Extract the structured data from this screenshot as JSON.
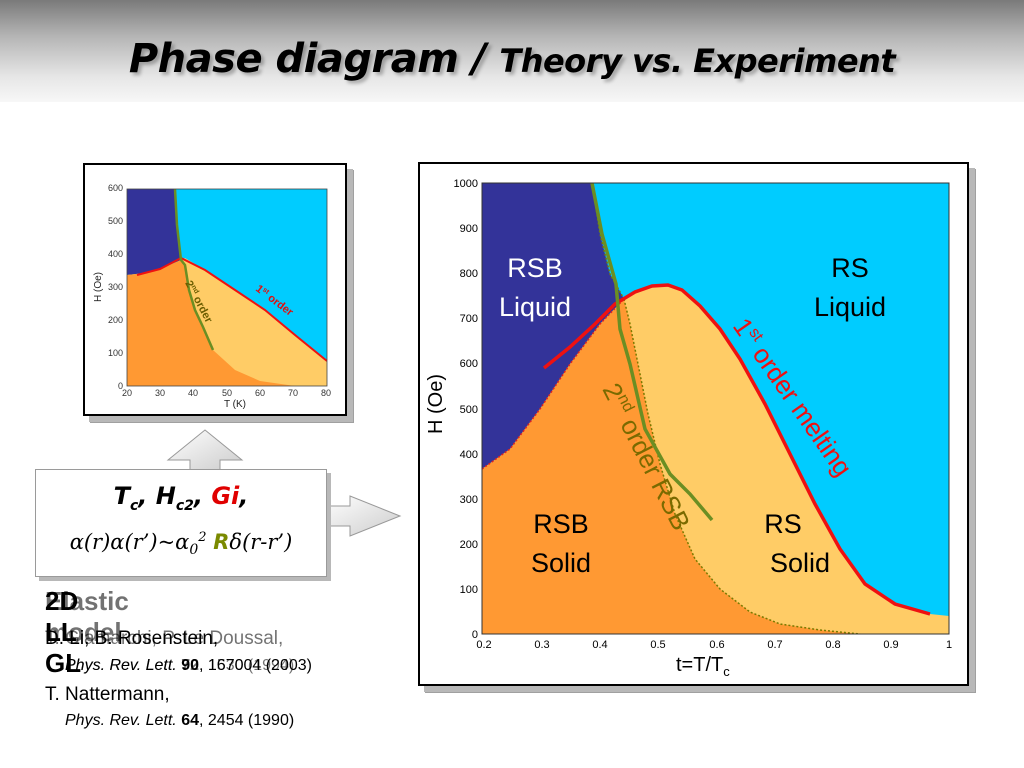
{
  "title": {
    "part1": "Phase diagram /",
    "part2": "Theory vs. Experiment"
  },
  "small_diagram": {
    "xlabel": "T (K)",
    "ylabel": "H (Oe)",
    "xticks": [
      "20",
      "30",
      "40",
      "50",
      "60",
      "70",
      "80"
    ],
    "yticks": [
      "0",
      "100",
      "200",
      "300",
      "400",
      "500",
      "600"
    ],
    "label_2nd": "2",
    "label_2nd_sup": "nd",
    "label_2nd_word": " order",
    "label_1st": "1",
    "label_1st_sup": "st",
    "label_1st_word": " order"
  },
  "main_diagram": {
    "xlabel_main": "t=T/T",
    "xlabel_sub": "c",
    "ylabel": "H (Oe)",
    "xticks": [
      "0.2",
      "0.3",
      "0.4",
      "0.5",
      "0.6",
      "0.7",
      "0.8",
      "0.9",
      "1"
    ],
    "yticks": [
      "0",
      "100",
      "200",
      "300",
      "400",
      "500",
      "600",
      "700",
      "800",
      "900",
      "1000"
    ],
    "regions": {
      "rsb_liquid_1": "RSB",
      "rsb_liquid_2": "Liquid",
      "rs_liquid_1": "RS",
      "rs_liquid_2": "Liquid",
      "rsb_solid_1": "RSB",
      "rsb_solid_2": "Solid",
      "rs_solid_1": "RS",
      "rs_solid_2": "Solid"
    },
    "line_1st": {
      "num": "1",
      "sup": "st",
      "text": " order melting"
    },
    "line_2nd": {
      "num": "2",
      "sup": "nd",
      "text": " order RSB"
    },
    "colors": {
      "rsb_liquid": "#333399",
      "rs_liquid": "#00ccff",
      "rsb_solid": "#ff9933",
      "rs_solid": "#ffcc66",
      "first_order_line": "#ee1111",
      "second_order_line": "#6b8e23"
    }
  },
  "params": {
    "Tc": "T",
    "Tc_sub": "c",
    "Hc2": "H",
    "Hc2_sub": "c2",
    "Gi": "Gi",
    "comma": ",",
    "alpha_expr_1": "α(r)α(r’)~α",
    "alpha_sub": "0",
    "alpha_sup": "2",
    "R": "R",
    "delta_expr": "δ(r-r’)"
  },
  "refs": {
    "heading_a": "2D LL GL",
    "heading_b": "Elastic model",
    "line_a": "D. Li, B. Rosenstein,",
    "line_b": "T. Giamarchi, P. Le Doussal,",
    "journal": "Phys. Rev. Lett.",
    "vol_a": "90",
    "vol_b": "72",
    "rest_a": ", 167004 (2003)",
    "rest_b": ", 1530 (1994)",
    "line_c": "T. Nattermann,",
    "vol_c": "64",
    "rest_c": ", 2454 (1990)"
  }
}
